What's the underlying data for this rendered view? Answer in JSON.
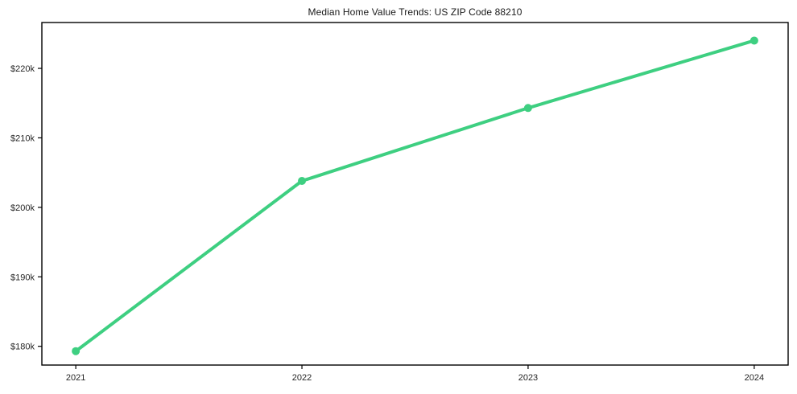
{
  "chart_data": {
    "type": "line",
    "title": "Median Home Value Trends: US ZIP Code 88210",
    "x": [
      2021,
      2022,
      2023,
      2024
    ],
    "values": [
      179300,
      203800,
      214300,
      224000
    ],
    "xticks": [
      {
        "value": 2021,
        "label": "2021"
      },
      {
        "value": 2022,
        "label": "2022"
      },
      {
        "value": 2023,
        "label": "2023"
      },
      {
        "value": 2024,
        "label": "2024"
      }
    ],
    "yticks": [
      {
        "value": 180000,
        "label": "$180k"
      },
      {
        "value": 190000,
        "label": "$190k"
      },
      {
        "value": 200000,
        "label": "$200k"
      },
      {
        "value": 210000,
        "label": "$210k"
      },
      {
        "value": 220000,
        "label": "$220k"
      }
    ],
    "xlim": [
      2020.85,
      2024.15
    ],
    "ylim": [
      177300,
      226600
    ],
    "grid": false,
    "legend": "none",
    "line_color": "#3ecf81",
    "marker": "circle",
    "background_color": "#ffffff",
    "frame_color": "#000000",
    "tick_label_color": "#262626",
    "title_color": "#1a1a1a"
  }
}
